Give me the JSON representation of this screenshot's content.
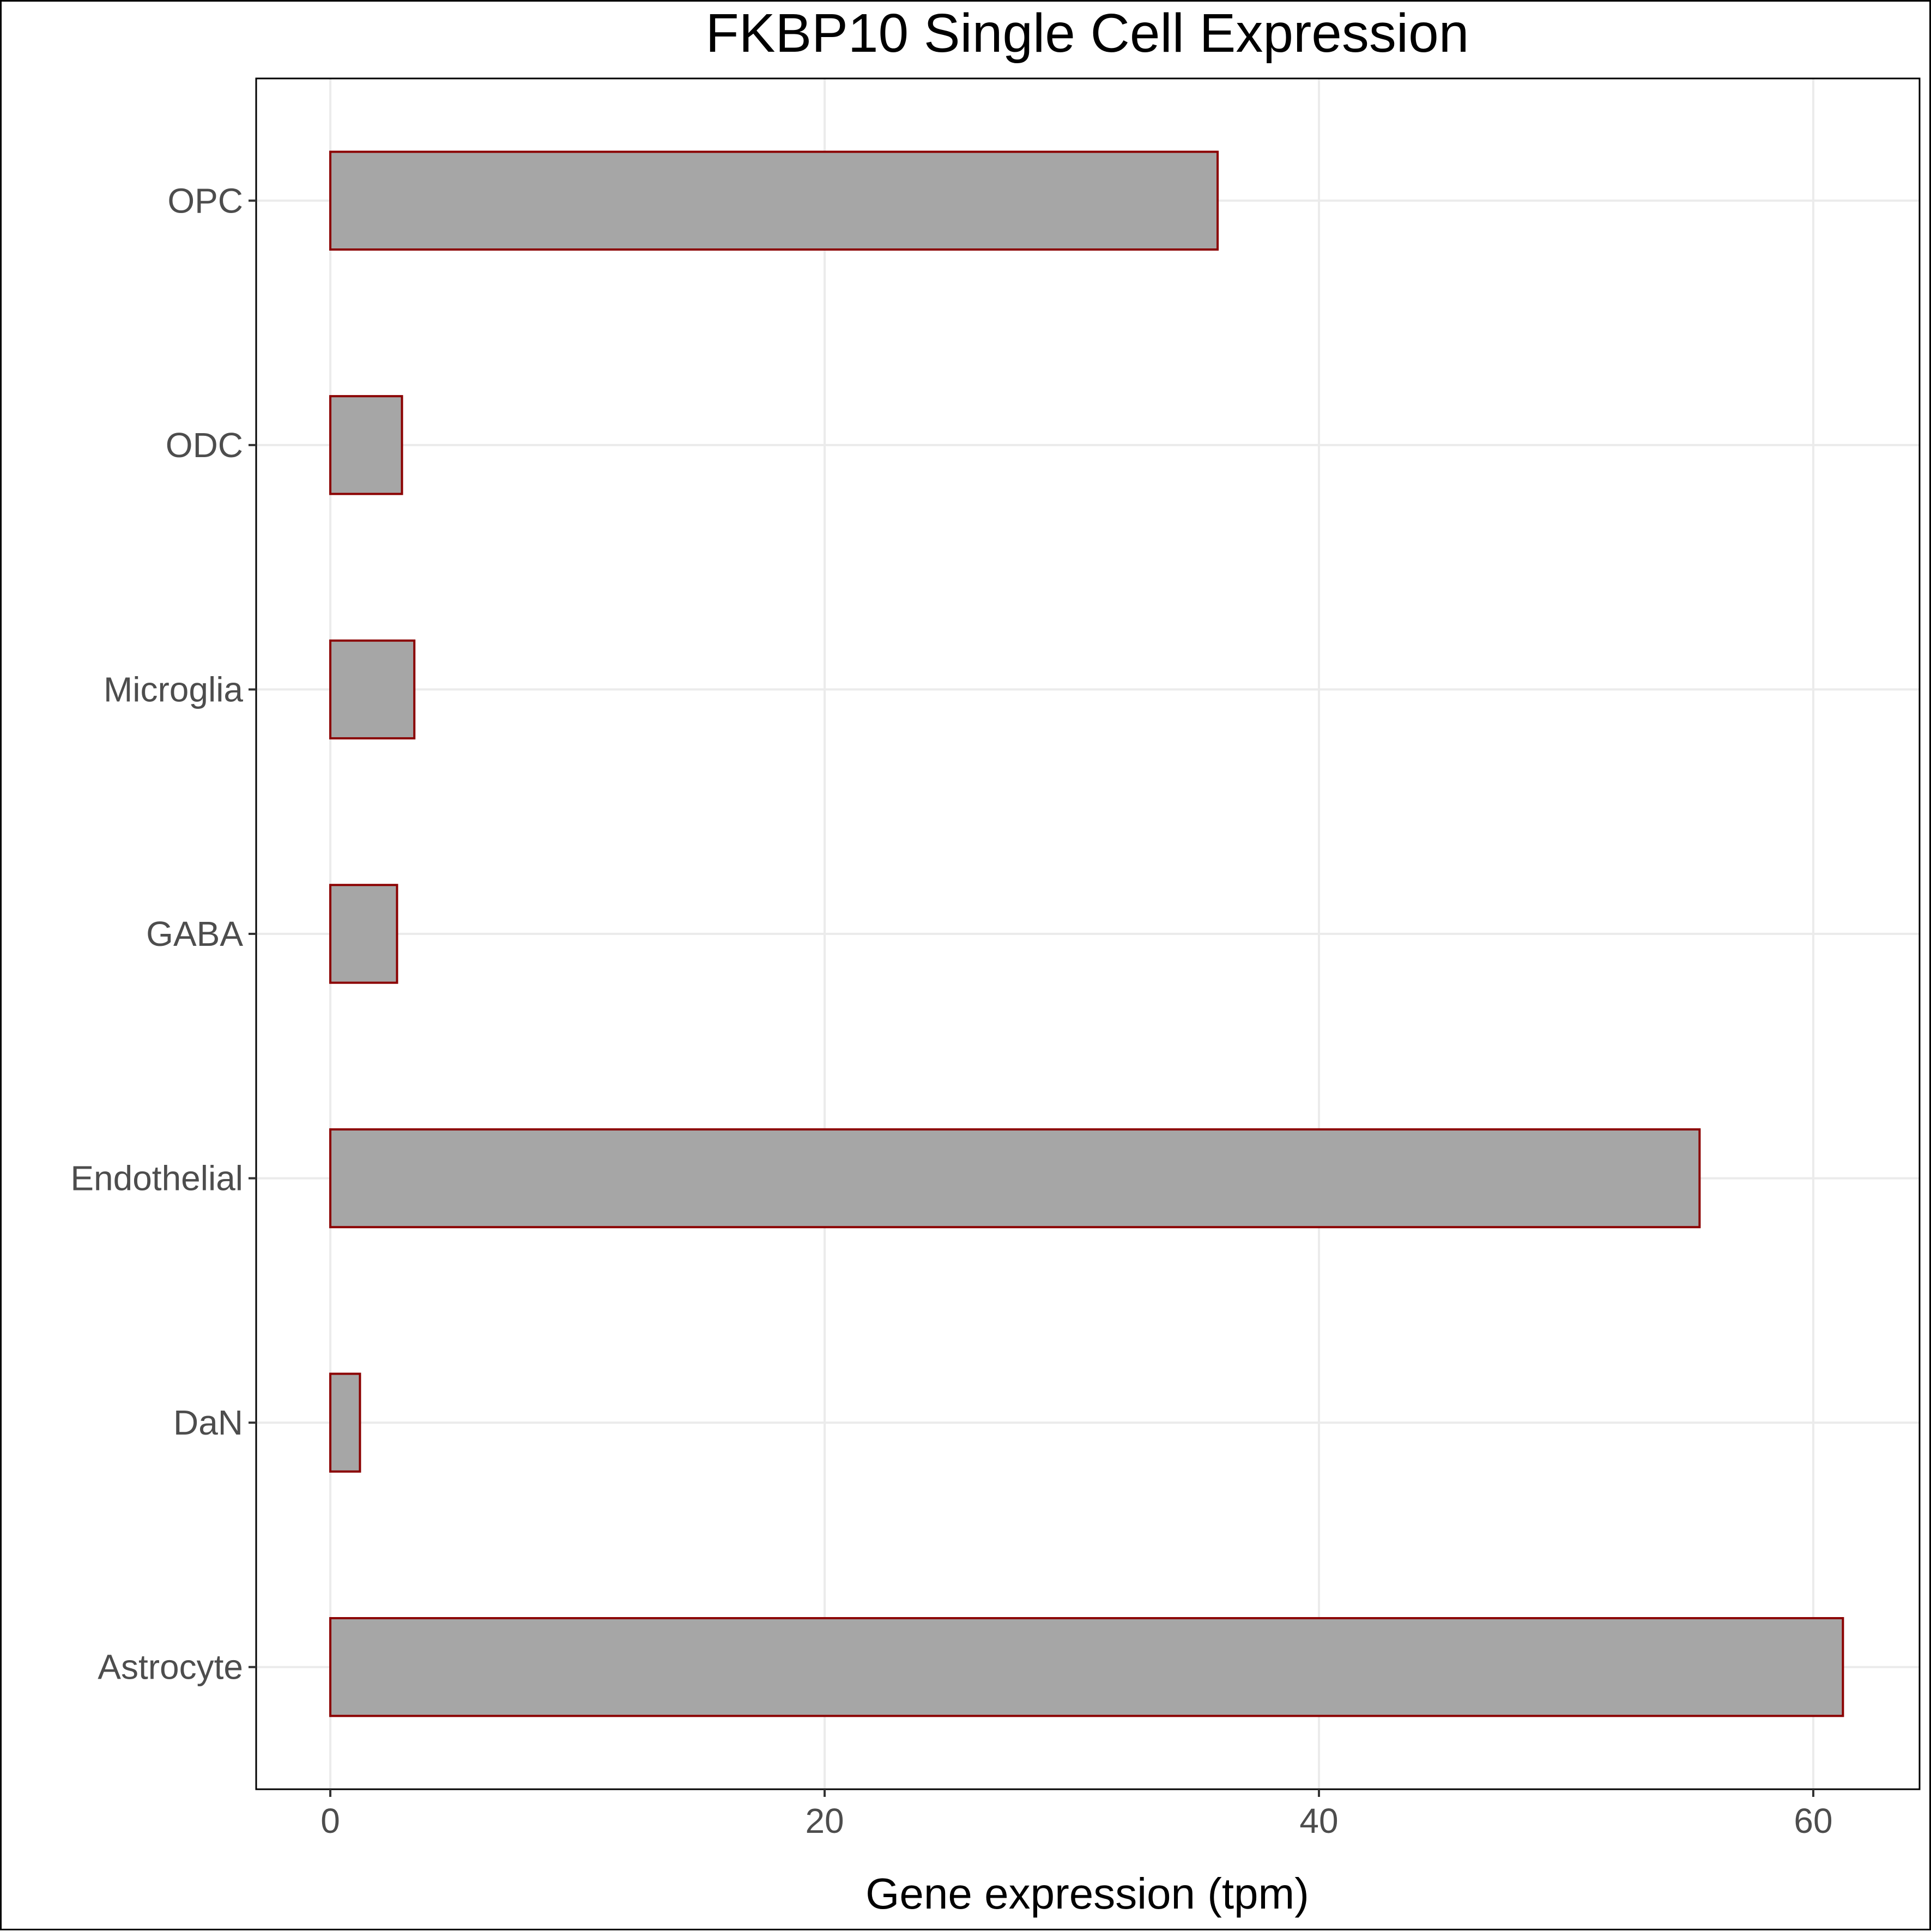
{
  "chart_data": {
    "type": "bar",
    "orientation": "horizontal",
    "title": "FKBP10 Single Cell Expression",
    "xlabel": "Gene expression (tpm)",
    "ylabel": "",
    "categories": [
      "Astrocyte",
      "DaN",
      "Endothelial",
      "GABA",
      "Microglia",
      "ODC",
      "OPC"
    ],
    "values": [
      61.2,
      1.2,
      55.4,
      2.7,
      3.4,
      2.9,
      35.9
    ],
    "xlim": [
      -3.0,
      64.3
    ],
    "xticks": [
      0,
      20,
      40,
      60
    ],
    "xtick_labels": [
      "0",
      "20",
      "40",
      "60"
    ],
    "grid": true,
    "legend": "none",
    "colors": {
      "bar_fill": "#a6a6a6",
      "bar_stroke": "#8b0000",
      "grid": "#ebebeb",
      "tick_label": "#4d4d4d",
      "text": "#000000"
    }
  }
}
